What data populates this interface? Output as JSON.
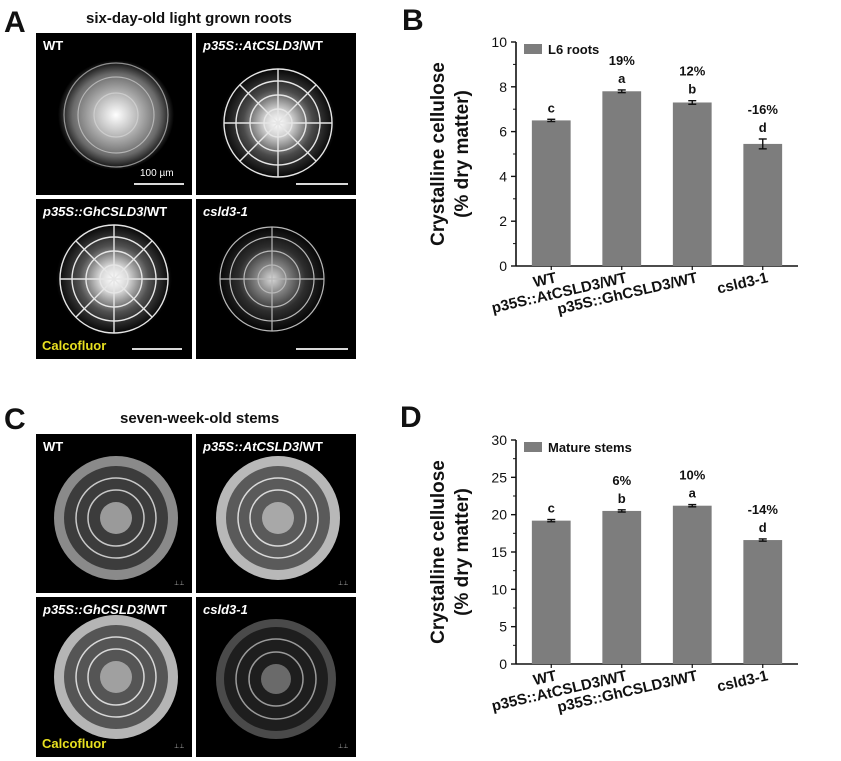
{
  "panels": {
    "a": {
      "label": "A",
      "title": "six-day-old light grown roots",
      "images": [
        {
          "name": "wt-root-image",
          "label": "WT",
          "italic": ""
        },
        {
          "name": "atcsld3-root-image",
          "label": "",
          "italic": "p35S::AtCSLD3",
          "suffix": "/WT"
        },
        {
          "name": "ghcsld3-root-image",
          "label": "",
          "italic": "p35S::GhCSLD3",
          "suffix": "/WT"
        },
        {
          "name": "csld3-root-image",
          "label": "",
          "italic": "csld3-1",
          "suffix": ""
        }
      ],
      "scale_label": "100 µm",
      "stain_label": "Calcofluor"
    },
    "b": {
      "label": "B"
    },
    "c": {
      "label": "C",
      "title": "seven-week-old stems",
      "images": [
        {
          "name": "wt-stem-image",
          "label": "WT",
          "italic": ""
        },
        {
          "name": "atcsld3-stem-image",
          "label": "",
          "italic": "p35S::AtCSLD3",
          "suffix": "/WT"
        },
        {
          "name": "ghcsld3-stem-image",
          "label": "",
          "italic": "p35S::GhCSLD3",
          "suffix": "/WT"
        },
        {
          "name": "csld3-stem-image",
          "label": "",
          "italic": "csld3-1",
          "suffix": ""
        }
      ],
      "stain_label": "Calcofluor"
    },
    "d": {
      "label": "D"
    }
  },
  "colors": {
    "bar": "#7d7d7d",
    "micro_bg": "#000000",
    "stain_text": "#e8e020"
  },
  "chart_data": [
    {
      "type": "bar",
      "title": "",
      "xlabel": "",
      "ylabel": [
        "Crystalline cellulose",
        "(% dry matter)"
      ],
      "ylim": [
        0,
        10
      ],
      "yticks": [
        0,
        2,
        4,
        6,
        8,
        10
      ],
      "categories": [
        "WT",
        "p35S::AtCSLD3/WT",
        "p35S::GhCSLD3/WT",
        "csld3-1"
      ],
      "series": [
        {
          "name": "L6 roots",
          "values": [
            6.5,
            7.8,
            7.3,
            5.45
          ],
          "errors": [
            0.05,
            0.06,
            0.08,
            0.22
          ]
        }
      ],
      "letters": [
        "c",
        "a",
        "b",
        "d"
      ],
      "percent_change": [
        "",
        "19%",
        "12%",
        "-16%"
      ],
      "legend_position": "top-left"
    },
    {
      "type": "bar",
      "title": "",
      "xlabel": "",
      "ylabel": [
        "Crystalline cellulose",
        "(% dry matter)"
      ],
      "ylim": [
        0,
        30
      ],
      "yticks": [
        0,
        5,
        10,
        15,
        20,
        25,
        30
      ],
      "categories": [
        "WT",
        "p35S::AtCSLD3/WT",
        "p35S::GhCSLD3/WT",
        "csld3-1"
      ],
      "series": [
        {
          "name": "Mature stems",
          "values": [
            19.2,
            20.5,
            21.2,
            16.6
          ],
          "errors": [
            0.15,
            0.15,
            0.15,
            0.15
          ]
        }
      ],
      "letters": [
        "c",
        "b",
        "a",
        "d"
      ],
      "percent_change": [
        "",
        "6%",
        "10%",
        "-14%"
      ],
      "legend_position": "top-left"
    }
  ]
}
